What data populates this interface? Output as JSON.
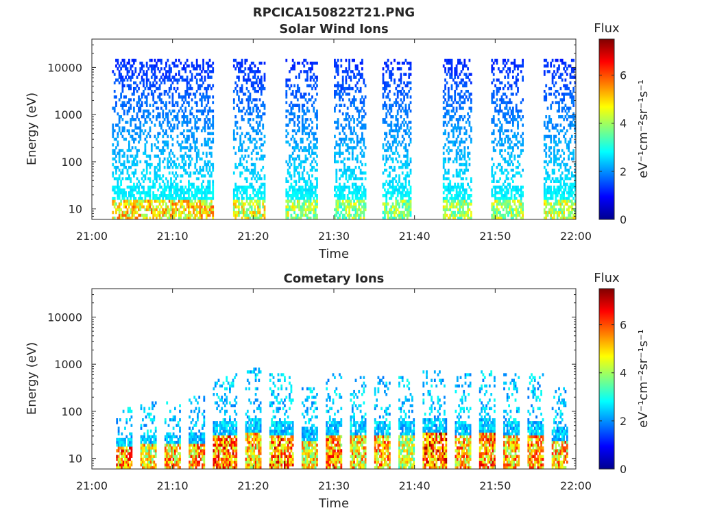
{
  "figure": {
    "title": "RPCICA150822T21.PNG"
  },
  "chart_data": [
    {
      "type": "heatmap",
      "title": "Solar Wind Ions",
      "xlabel": "Time",
      "ylabel": "Energy (eV)",
      "x_ticks": [
        "21:00",
        "21:10",
        "21:20",
        "21:30",
        "21:40",
        "21:50",
        "22:00"
      ],
      "x_range": [
        "21:00",
        "22:00"
      ],
      "y_scale": "log",
      "y_ticks": [
        "10",
        "100",
        "1000",
        "10000"
      ],
      "y_range": [
        6,
        40000
      ],
      "colorbar": {
        "label": "Flux",
        "unit_label": "eV⁻¹cm⁻²sr⁻¹s⁻¹",
        "ticks": [
          "0",
          "2",
          "4",
          "6"
        ],
        "range": [
          0,
          7.5
        ],
        "colormap": "jet"
      },
      "bursts": [
        {
          "start": "21:02.5",
          "end": "21:15.0",
          "emax": 15000,
          "peak": 6.0
        },
        {
          "start": "21:17.5",
          "end": "21:21.5",
          "emax": 15000,
          "peak": 5.5
        },
        {
          "start": "21:24.0",
          "end": "21:28.0",
          "emax": 15000,
          "peak": 5.0
        },
        {
          "start": "21:30.0",
          "end": "21:34.0",
          "emax": 15000,
          "peak": 4.8
        },
        {
          "start": "21:36.0",
          "end": "21:39.5",
          "emax": 15000,
          "peak": 4.8
        },
        {
          "start": "21:43.5",
          "end": "21:47.0",
          "emax": 15000,
          "peak": 5.0
        },
        {
          "start": "21:49.5",
          "end": "21:53.5",
          "emax": 15000,
          "peak": 5.0
        },
        {
          "start": "21:56.0",
          "end": "22:00.0",
          "emax": 15000,
          "peak": 5.2
        }
      ]
    },
    {
      "type": "heatmap",
      "title": "Cometary Ions",
      "xlabel": "Time",
      "ylabel": "Energy (eV)",
      "x_ticks": [
        "21:00",
        "21:10",
        "21:20",
        "21:30",
        "21:40",
        "21:50",
        "22:00"
      ],
      "x_range": [
        "21:00",
        "22:00"
      ],
      "y_scale": "log",
      "y_ticks": [
        "10",
        "100",
        "1000",
        "10000"
      ],
      "y_range": [
        6,
        40000
      ],
      "colorbar": {
        "label": "Flux",
        "unit_label": "eV⁻¹cm⁻²sr⁻¹s⁻¹",
        "ticks": [
          "0",
          "2",
          "4",
          "6"
        ],
        "range": [
          0,
          7.5
        ],
        "colormap": "jet"
      },
      "bursts": [
        {
          "start": "21:03.0",
          "end": "21:05.0",
          "emax": 120,
          "peak": 7.0
        },
        {
          "start": "21:06.0",
          "end": "21:08.0",
          "emax": 150,
          "peak": 6.0
        },
        {
          "start": "21:09.0",
          "end": "21:11.0",
          "emax": 150,
          "peak": 6.5
        },
        {
          "start": "21:12.0",
          "end": "21:14.0",
          "emax": 200,
          "peak": 6.8
        },
        {
          "start": "21:15.0",
          "end": "21:18.0",
          "emax": 600,
          "peak": 7.2
        },
        {
          "start": "21:19.0",
          "end": "21:21.0",
          "emax": 800,
          "peak": 6.5
        },
        {
          "start": "21:22.0",
          "end": "21:25.0",
          "emax": 600,
          "peak": 7.2
        },
        {
          "start": "21:26.0",
          "end": "21:28.0",
          "emax": 300,
          "peak": 6.0
        },
        {
          "start": "21:29.0",
          "end": "21:31.0",
          "emax": 600,
          "peak": 6.8
        },
        {
          "start": "21:32.0",
          "end": "21:34.0",
          "emax": 500,
          "peak": 6.2
        },
        {
          "start": "21:35.0",
          "end": "21:37.0",
          "emax": 500,
          "peak": 6.5
        },
        {
          "start": "21:38.0",
          "end": "21:40.0",
          "emax": 500,
          "peak": 5.5
        },
        {
          "start": "21:41.0",
          "end": "21:44.0",
          "emax": 700,
          "peak": 7.3
        },
        {
          "start": "21:45.0",
          "end": "21:47.0",
          "emax": 600,
          "peak": 6.5
        },
        {
          "start": "21:48.0",
          "end": "21:50.0",
          "emax": 700,
          "peak": 7.0
        },
        {
          "start": "21:51.0",
          "end": "21:53.0",
          "emax": 600,
          "peak": 6.5
        },
        {
          "start": "21:54.0",
          "end": "21:56.0",
          "emax": 600,
          "peak": 6.8
        },
        {
          "start": "21:57.0",
          "end": "21:59.0",
          "emax": 300,
          "peak": 6.5
        }
      ]
    }
  ]
}
